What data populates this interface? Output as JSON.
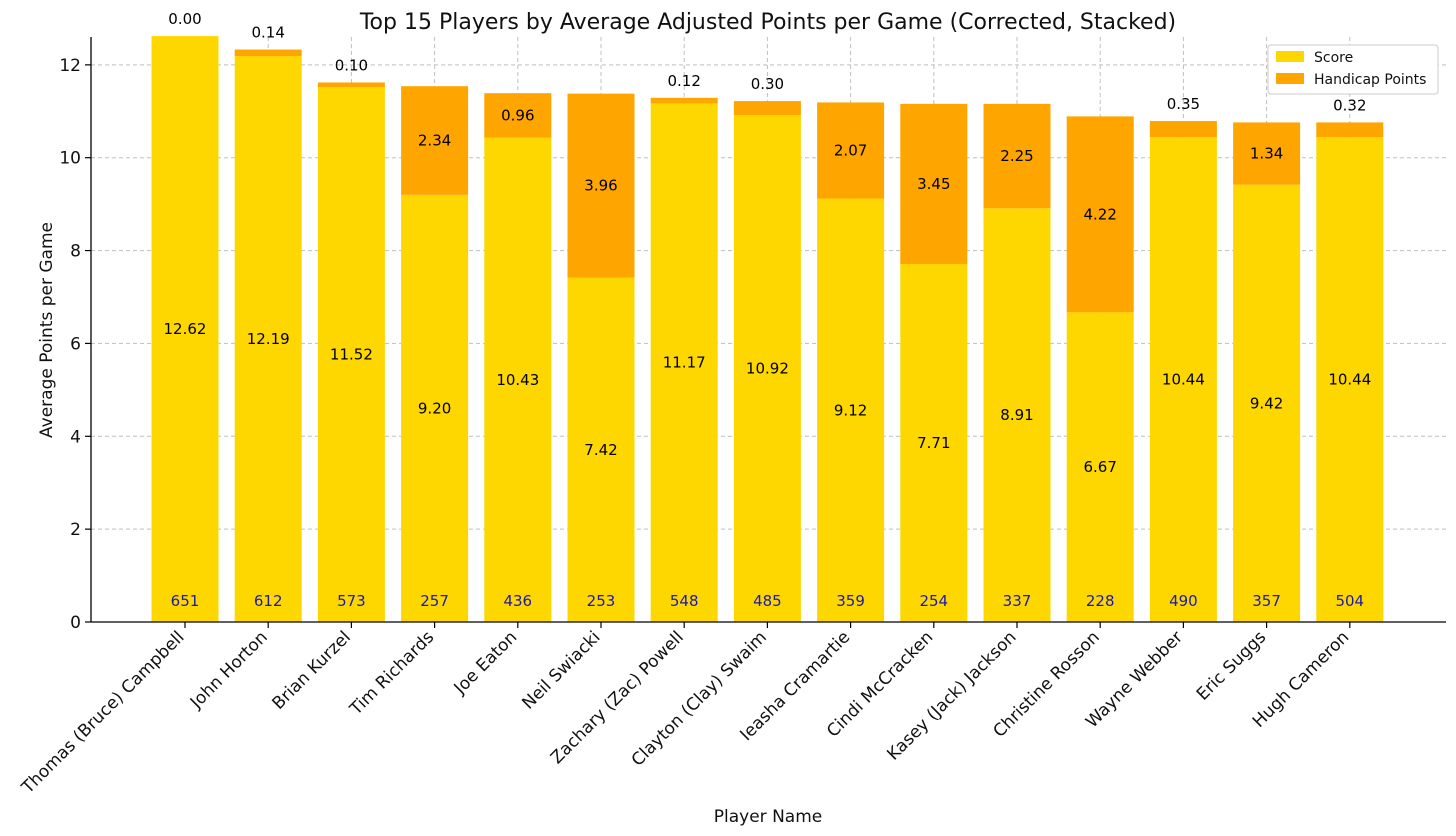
{
  "chart_data": {
    "type": "bar",
    "stacked": true,
    "title": "Top 15 Players by Average Adjusted Points per Game (Corrected, Stacked)",
    "xlabel": "Player Name",
    "ylabel": "Average Points per Game",
    "ylim": [
      0,
      12.6
    ],
    "yticks": [
      0,
      2,
      4,
      6,
      8,
      10,
      12
    ],
    "grid": true,
    "legend_position": "top-right",
    "categories": [
      "Thomas (Bruce) Campbell",
      "John Horton",
      "Brian Kurzel",
      "Tim Richards",
      "Joe Eaton",
      "Neil Swiacki",
      "Zachary (Zac) Powell",
      "Clayton (Clay) Swaim",
      "Ieasha Cramartie",
      "Cindi McCracken",
      "Kasey (Jack) Jackson",
      "Christine Rosson",
      "Wayne Webber",
      "Eric Suggs",
      "Hugh Cameron"
    ],
    "series": [
      {
        "name": "Score",
        "color": "#FFD700",
        "values": [
          12.62,
          12.19,
          11.52,
          9.2,
          10.43,
          7.42,
          11.17,
          10.92,
          9.12,
          7.71,
          8.91,
          6.67,
          10.44,
          9.42,
          10.44
        ],
        "labels": [
          "12.62",
          "12.19",
          "11.52",
          "9.20",
          "10.43",
          "7.42",
          "11.17",
          "10.92",
          "9.12",
          "7.71",
          "8.91",
          "6.67",
          "10.44",
          "9.42",
          "10.44"
        ]
      },
      {
        "name": "Handicap Points",
        "color": "#FFA500",
        "values": [
          0.0,
          0.14,
          0.1,
          2.34,
          0.96,
          3.96,
          0.12,
          0.3,
          2.07,
          3.45,
          2.25,
          4.22,
          0.35,
          1.34,
          0.32
        ],
        "labels": [
          "0.00",
          "0.14",
          "0.10",
          "2.34",
          "0.96",
          "3.96",
          "0.12",
          "0.30",
          "2.07",
          "3.45",
          "2.25",
          "4.22",
          "0.35",
          "1.34",
          "0.32"
        ]
      }
    ],
    "counts": [
      "651",
      "612",
      "573",
      "257",
      "436",
      "253",
      "548",
      "485",
      "359",
      "254",
      "337",
      "228",
      "490",
      "357",
      "504"
    ]
  }
}
